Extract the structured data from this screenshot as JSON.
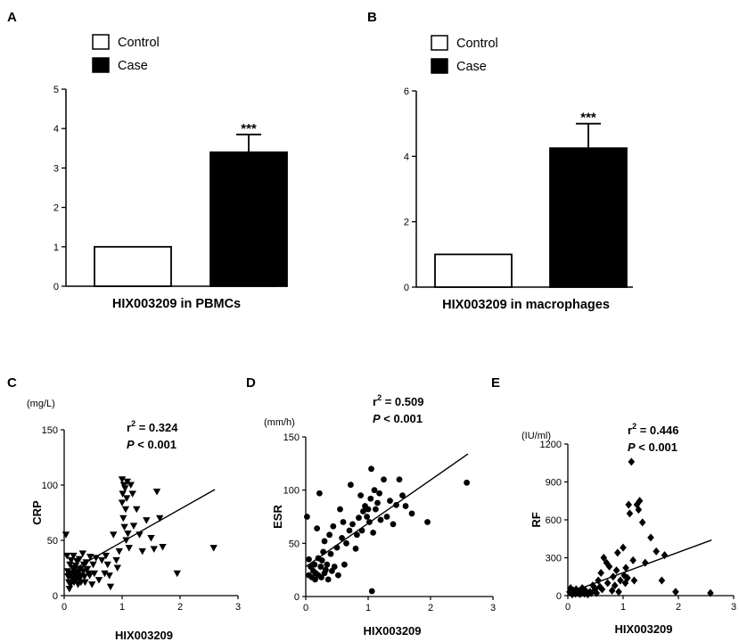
{
  "chart_data": [
    {
      "panel": "A",
      "type": "bar",
      "categories": [
        "Control",
        "Case"
      ],
      "values": [
        1.0,
        3.4
      ],
      "errors": [
        0.0,
        0.45
      ],
      "xlabel": "HIX003209 in PBMCs",
      "ylabel": "",
      "ylim": [
        0,
        5
      ],
      "yticks": [
        "0",
        "1",
        "2",
        "3",
        "4",
        "5"
      ],
      "significance": "***",
      "legend": [
        {
          "label": "Control",
          "color": "#ffffff"
        },
        {
          "label": "Case",
          "color": "#000000"
        }
      ],
      "legend_position": "top-left"
    },
    {
      "panel": "B",
      "type": "bar",
      "categories": [
        "Control",
        "Case"
      ],
      "values": [
        1.0,
        4.25
      ],
      "errors": [
        0.0,
        0.75
      ],
      "xlabel": "HIX003209 in macrophages",
      "ylabel": "",
      "ylim": [
        0,
        6
      ],
      "yticks": [
        "0",
        "2",
        "4",
        "6"
      ],
      "significance": "***",
      "legend": [
        {
          "label": "Control",
          "color": "#ffffff"
        },
        {
          "label": "Case",
          "color": "#000000"
        }
      ],
      "legend_position": "top-left"
    },
    {
      "panel": "C",
      "type": "scatter",
      "marker": "triangle-down",
      "xlabel": "HIX003209",
      "ylabel": "CRP",
      "unit": "(mg/L)",
      "xlim": [
        0,
        3
      ],
      "ylim": [
        0,
        150
      ],
      "xticks": [
        "0",
        "1",
        "2",
        "3"
      ],
      "yticks": [
        "0",
        "50",
        "100",
        "150"
      ],
      "r2_prefix": "r",
      "r2_sup": "2",
      "r2_value": " = 0.324",
      "p_symbol": "P",
      "p_value": " < 0.001",
      "fit_line": [
        [
          0,
          19
        ],
        [
          2.6,
          96
        ]
      ],
      "points": [
        [
          0.03,
          55
        ],
        [
          0.05,
          36
        ],
        [
          0.06,
          22
        ],
        [
          0.07,
          17
        ],
        [
          0.08,
          12
        ],
        [
          0.09,
          6
        ],
        [
          0.1,
          28
        ],
        [
          0.1,
          18
        ],
        [
          0.11,
          10
        ],
        [
          0.12,
          32
        ],
        [
          0.13,
          20
        ],
        [
          0.14,
          15
        ],
        [
          0.15,
          25
        ],
        [
          0.16,
          36
        ],
        [
          0.17,
          12
        ],
        [
          0.18,
          21
        ],
        [
          0.19,
          17
        ],
        [
          0.2,
          27
        ],
        [
          0.21,
          14
        ],
        [
          0.22,
          31
        ],
        [
          0.23,
          19
        ],
        [
          0.24,
          10
        ],
        [
          0.25,
          22
        ],
        [
          0.26,
          33
        ],
        [
          0.27,
          16
        ],
        [
          0.28,
          24
        ],
        [
          0.29,
          12
        ],
        [
          0.3,
          18
        ],
        [
          0.32,
          38
        ],
        [
          0.33,
          22
        ],
        [
          0.34,
          28
        ],
        [
          0.35,
          17
        ],
        [
          0.36,
          12
        ],
        [
          0.38,
          30
        ],
        [
          0.4,
          24
        ],
        [
          0.42,
          20
        ],
        [
          0.44,
          18
        ],
        [
          0.45,
          35
        ],
        [
          0.48,
          10
        ],
        [
          0.5,
          28
        ],
        [
          0.52,
          20
        ],
        [
          0.55,
          34
        ],
        [
          0.6,
          14
        ],
        [
          0.65,
          32
        ],
        [
          0.7,
          20
        ],
        [
          0.72,
          36
        ],
        [
          0.75,
          28
        ],
        [
          0.78,
          18
        ],
        [
          0.8,
          8
        ],
        [
          0.85,
          55
        ],
        [
          0.9,
          32
        ],
        [
          0.92,
          25
        ],
        [
          0.95,
          40
        ],
        [
          1.0,
          105
        ],
        [
          1.0,
          84
        ],
        [
          1.01,
          92
        ],
        [
          1.02,
          70
        ],
        [
          1.03,
          100
        ],
        [
          1.04,
          62
        ],
        [
          1.05,
          97
        ],
        [
          1.06,
          78
        ],
        [
          1.07,
          50
        ],
        [
          1.08,
          88
        ],
        [
          1.09,
          103
        ],
        [
          1.1,
          56
        ],
        [
          1.12,
          43
        ],
        [
          1.15,
          100
        ],
        [
          1.18,
          92
        ],
        [
          1.2,
          63
        ],
        [
          1.25,
          78
        ],
        [
          1.3,
          55
        ],
        [
          1.35,
          40
        ],
        [
          1.42,
          68
        ],
        [
          1.5,
          52
        ],
        [
          1.55,
          42
        ],
        [
          1.6,
          94
        ],
        [
          1.65,
          70
        ],
        [
          1.7,
          44
        ],
        [
          1.95,
          20
        ],
        [
          2.58,
          43
        ]
      ]
    },
    {
      "panel": "D",
      "type": "scatter",
      "marker": "circle",
      "xlabel": "HIX003209",
      "ylabel": "ESR",
      "unit": "(mm/h)",
      "xlim": [
        0,
        3
      ],
      "ylim": [
        0,
        150
      ],
      "xticks": [
        "0",
        "1",
        "2",
        "3"
      ],
      "yticks": [
        "0",
        "50",
        "100",
        "150"
      ],
      "r2_prefix": "r",
      "r2_sup": "2",
      "r2_value": " = 0.509",
      "p_symbol": "P",
      "p_value": " < 0.001",
      "fit_line": [
        [
          0,
          28
        ],
        [
          2.6,
          134
        ]
      ],
      "points": [
        [
          0.02,
          75
        ],
        [
          0.05,
          35
        ],
        [
          0.05,
          20
        ],
        [
          0.08,
          28
        ],
        [
          0.1,
          18
        ],
        [
          0.12,
          24
        ],
        [
          0.14,
          30
        ],
        [
          0.15,
          16
        ],
        [
          0.16,
          22
        ],
        [
          0.18,
          64
        ],
        [
          0.2,
          36
        ],
        [
          0.2,
          20
        ],
        [
          0.22,
          97
        ],
        [
          0.24,
          28
        ],
        [
          0.25,
          18
        ],
        [
          0.26,
          34
        ],
        [
          0.28,
          42
        ],
        [
          0.3,
          22
        ],
        [
          0.3,
          52
        ],
        [
          0.32,
          25
        ],
        [
          0.34,
          30
        ],
        [
          0.36,
          16
        ],
        [
          0.38,
          58
        ],
        [
          0.4,
          40
        ],
        [
          0.42,
          24
        ],
        [
          0.44,
          66
        ],
        [
          0.46,
          28
        ],
        [
          0.5,
          46
        ],
        [
          0.52,
          20
        ],
        [
          0.55,
          82
        ],
        [
          0.58,
          55
        ],
        [
          0.6,
          70
        ],
        [
          0.62,
          30
        ],
        [
          0.65,
          50
        ],
        [
          0.7,
          62
        ],
        [
          0.72,
          105
        ],
        [
          0.75,
          68
        ],
        [
          0.8,
          45
        ],
        [
          0.82,
          58
        ],
        [
          0.85,
          74
        ],
        [
          0.88,
          95
        ],
        [
          0.9,
          62
        ],
        [
          0.92,
          80
        ],
        [
          0.95,
          85
        ],
        [
          0.98,
          75
        ],
        [
          1.0,
          82
        ],
        [
          1.02,
          70
        ],
        [
          1.04,
          92
        ],
        [
          1.05,
          120
        ],
        [
          1.06,
          5
        ],
        [
          1.08,
          60
        ],
        [
          1.1,
          100
        ],
        [
          1.12,
          82
        ],
        [
          1.15,
          88
        ],
        [
          1.18,
          97
        ],
        [
          1.2,
          72
        ],
        [
          1.25,
          110
        ],
        [
          1.3,
          75
        ],
        [
          1.35,
          90
        ],
        [
          1.4,
          68
        ],
        [
          1.45,
          86
        ],
        [
          1.5,
          110
        ],
        [
          1.55,
          95
        ],
        [
          1.6,
          85
        ],
        [
          1.7,
          78
        ],
        [
          1.95,
          70
        ],
        [
          2.58,
          107
        ]
      ]
    },
    {
      "panel": "E",
      "type": "scatter",
      "marker": "diamond",
      "xlabel": "HIX003209",
      "ylabel": "RF",
      "unit": "(IU/ml)",
      "xlim": [
        0,
        3
      ],
      "ylim": [
        0,
        1200
      ],
      "xticks": [
        "0",
        "1",
        "2",
        "3"
      ],
      "yticks": [
        "0",
        "300",
        "600",
        "900",
        "1200"
      ],
      "r2_prefix": "r",
      "r2_sup": "2",
      "r2_value": " = 0.446",
      "p_symbol": "P",
      "p_value": " < 0.001",
      "fit_line": [
        [
          0,
          20
        ],
        [
          2.6,
          440
        ]
      ],
      "points": [
        [
          0.03,
          30
        ],
        [
          0.05,
          60
        ],
        [
          0.06,
          20
        ],
        [
          0.08,
          10
        ],
        [
          0.1,
          40
        ],
        [
          0.12,
          25
        ],
        [
          0.14,
          15
        ],
        [
          0.15,
          50
        ],
        [
          0.16,
          30
        ],
        [
          0.18,
          20
        ],
        [
          0.2,
          35
        ],
        [
          0.22,
          12
        ],
        [
          0.24,
          45
        ],
        [
          0.25,
          20
        ],
        [
          0.26,
          60
        ],
        [
          0.28,
          30
        ],
        [
          0.3,
          15
        ],
        [
          0.32,
          40
        ],
        [
          0.34,
          25
        ],
        [
          0.36,
          10
        ],
        [
          0.4,
          30
        ],
        [
          0.42,
          20
        ],
        [
          0.45,
          80
        ],
        [
          0.48,
          40
        ],
        [
          0.5,
          55
        ],
        [
          0.52,
          20
        ],
        [
          0.55,
          120
        ],
        [
          0.58,
          70
        ],
        [
          0.6,
          180
        ],
        [
          0.62,
          50
        ],
        [
          0.65,
          300
        ],
        [
          0.7,
          260
        ],
        [
          0.72,
          100
        ],
        [
          0.75,
          230
        ],
        [
          0.8,
          40
        ],
        [
          0.82,
          150
        ],
        [
          0.85,
          80
        ],
        [
          0.88,
          200
        ],
        [
          0.9,
          340
        ],
        [
          0.92,
          30
        ],
        [
          0.95,
          120
        ],
        [
          1.0,
          380
        ],
        [
          1.02,
          160
        ],
        [
          1.04,
          100
        ],
        [
          1.05,
          220
        ],
        [
          1.08,
          140
        ],
        [
          1.1,
          720
        ],
        [
          1.12,
          650
        ],
        [
          1.15,
          1060
        ],
        [
          1.18,
          280
        ],
        [
          1.2,
          120
        ],
        [
          1.25,
          720
        ],
        [
          1.28,
          680
        ],
        [
          1.3,
          750
        ],
        [
          1.35,
          580
        ],
        [
          1.4,
          260
        ],
        [
          1.5,
          460
        ],
        [
          1.6,
          350
        ],
        [
          1.7,
          120
        ],
        [
          1.75,
          320
        ],
        [
          1.95,
          30
        ],
        [
          2.58,
          20
        ]
      ]
    }
  ]
}
